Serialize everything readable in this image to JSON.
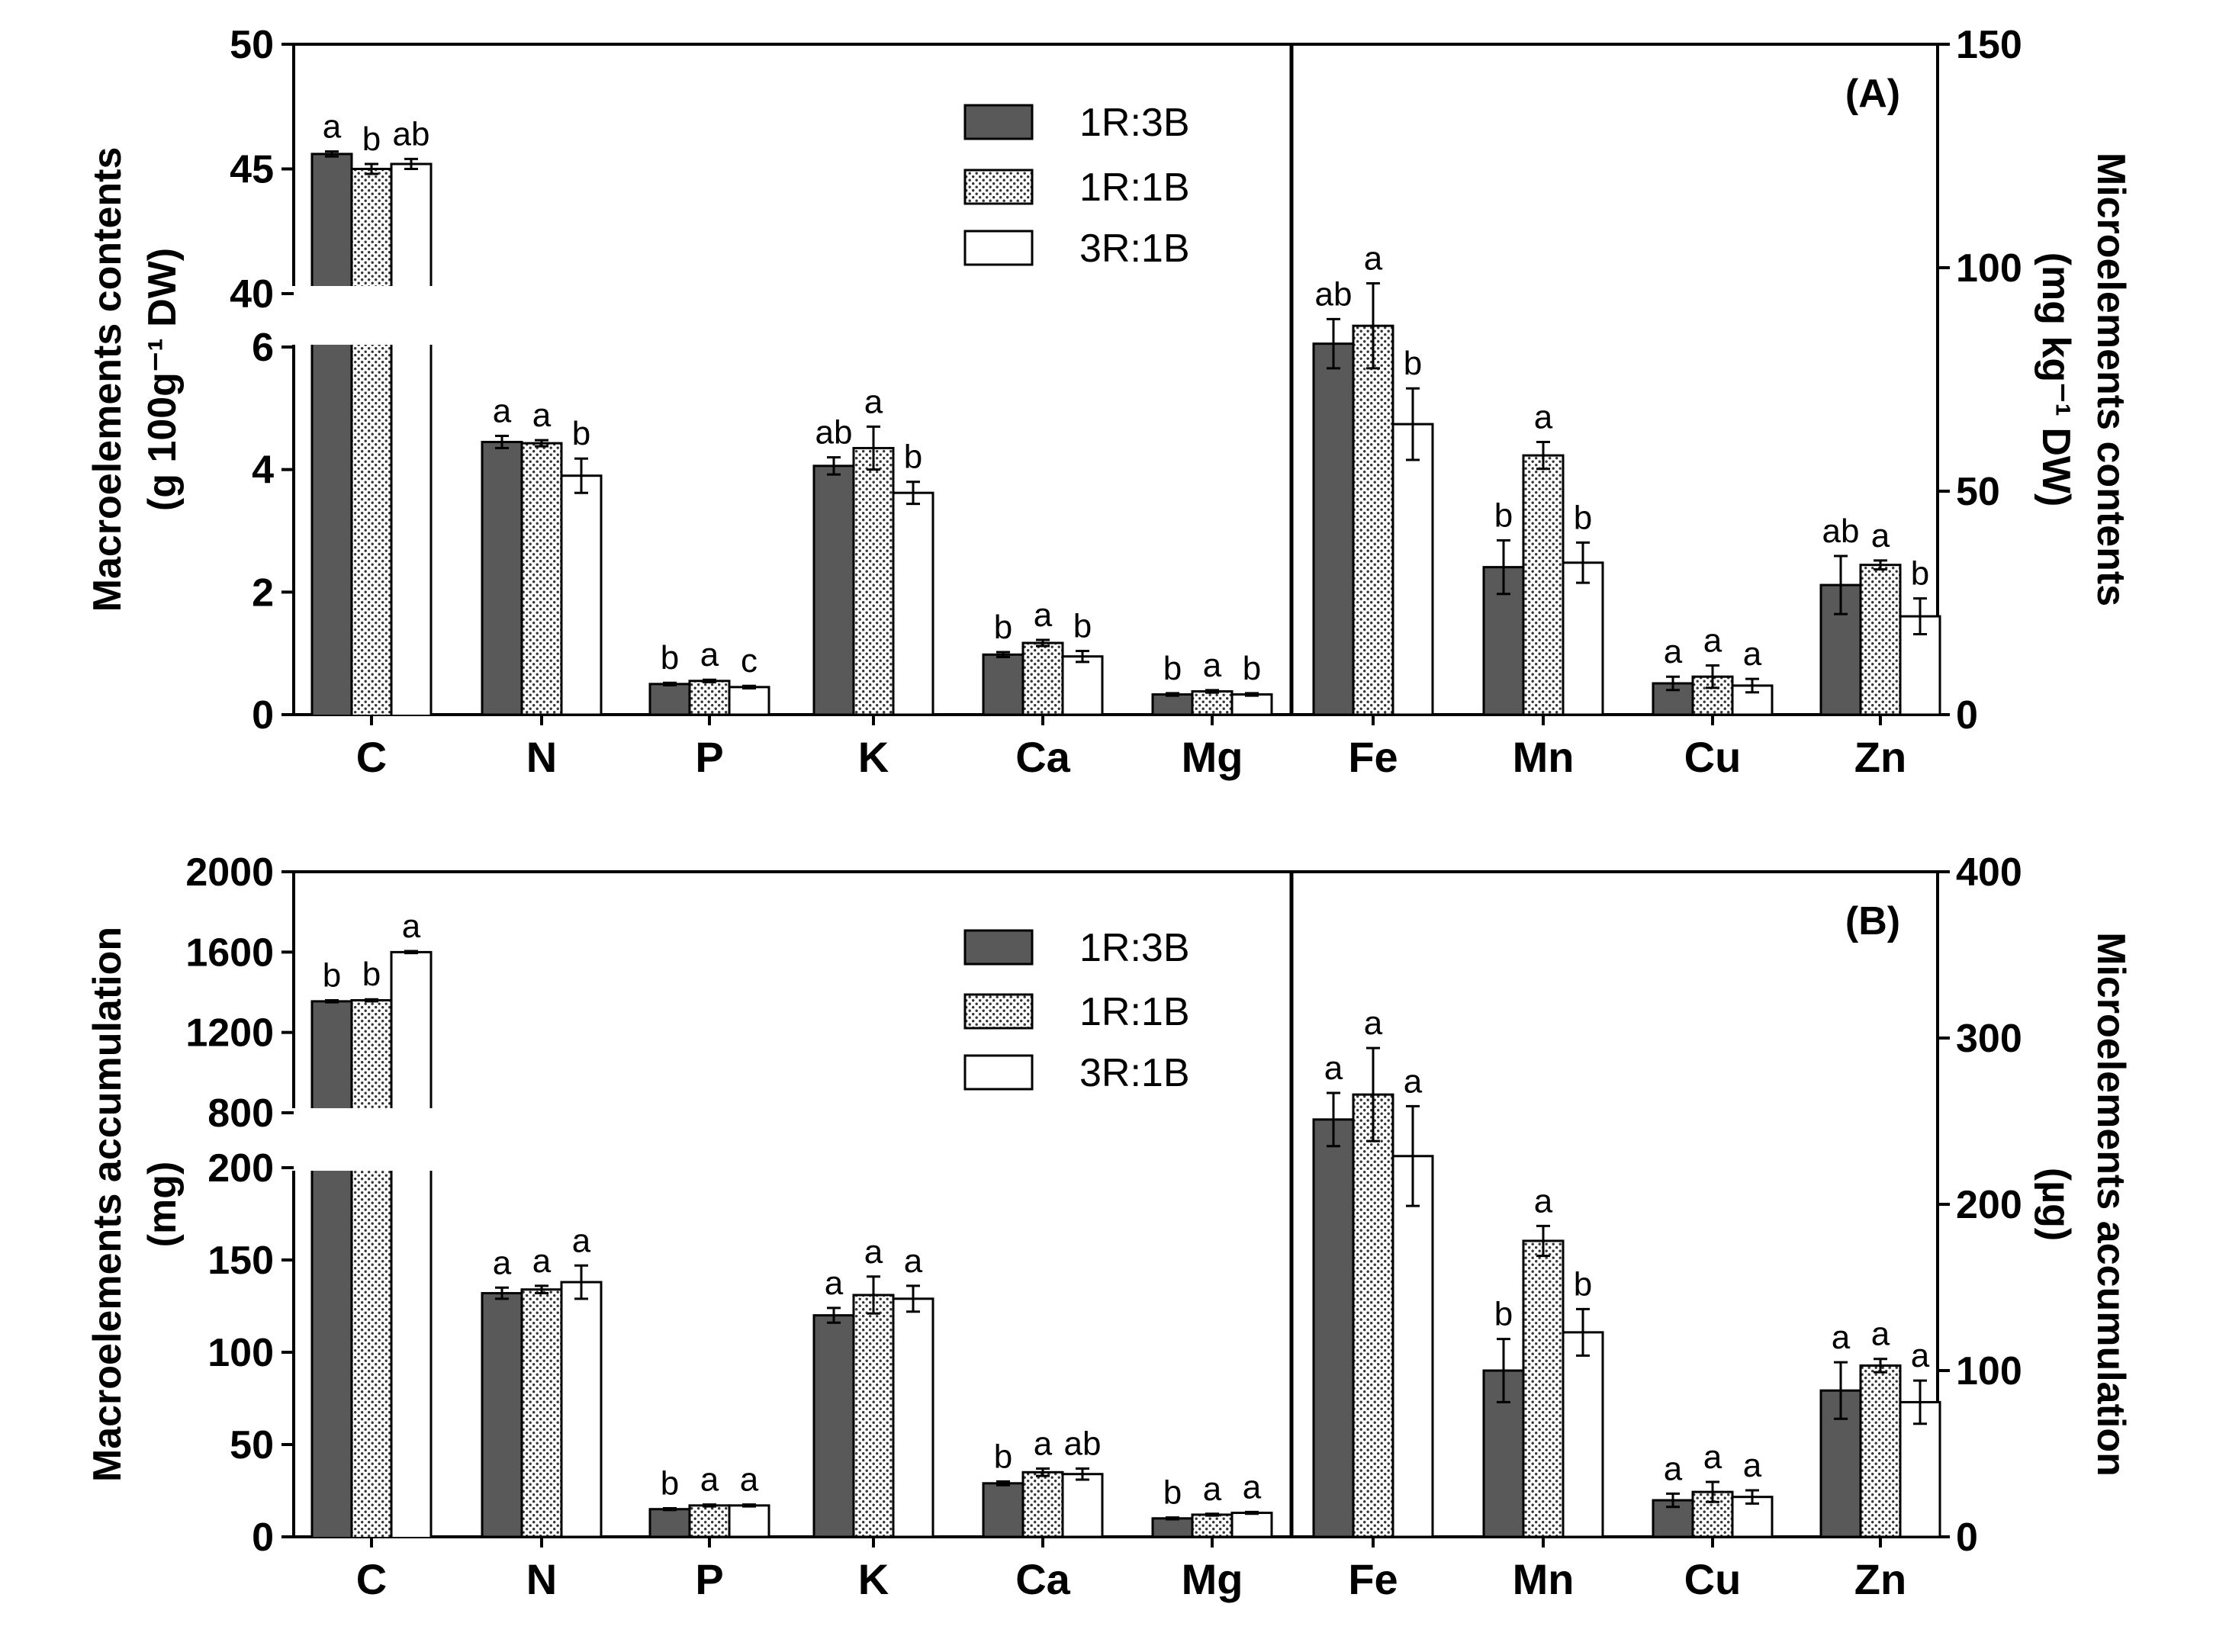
{
  "chart_data": [
    {
      "type": "bar",
      "panel_label": "(A)",
      "series_names": [
        "1R:3B",
        "1R:1B",
        "3R:1B"
      ],
      "colors": [
        "#595959",
        "#ffffff",
        "#ffffff"
      ],
      "patterns": [
        "solid",
        "dotted",
        "open"
      ],
      "left_ylabel_lines": [
        "Macroelements contents",
        "(g 100g⁻¹ DW)"
      ],
      "right_ylabel_lines": [
        "Microelements contents",
        "(mg kg⁻¹ DW)"
      ],
      "left_axis": {
        "lower_range": [
          0,
          6
        ],
        "lower_ticks": [
          0,
          2,
          4,
          6
        ],
        "upper_range": [
          40,
          50
        ],
        "upper_ticks": [
          40,
          45,
          50
        ]
      },
      "right_axis": {
        "range": [
          0,
          150
        ],
        "ticks": [
          0,
          50,
          100,
          150
        ]
      },
      "macro": {
        "categories": [
          "C",
          "N",
          "P",
          "K",
          "Ca",
          "Mg"
        ],
        "series": [
          {
            "name": "1R:3B",
            "values": [
              45.6,
              4.45,
              0.5,
              4.06,
              0.98,
              0.33
            ],
            "errors": [
              0.1,
              0.1,
              0.02,
              0.14,
              0.04,
              0.02
            ],
            "letters": [
              "a",
              "a",
              "b",
              "ab",
              "b",
              "b"
            ]
          },
          {
            "name": "1R:1B",
            "values": [
              45.0,
              4.43,
              0.55,
              4.35,
              1.17,
              0.38
            ],
            "errors": [
              0.2,
              0.05,
              0.02,
              0.35,
              0.05,
              0.02
            ],
            "letters": [
              "b",
              "a",
              "a",
              "a",
              "a",
              "a"
            ]
          },
          {
            "name": "3R:1B",
            "values": [
              45.2,
              3.9,
              0.45,
              3.62,
              0.95,
              0.33
            ],
            "errors": [
              0.2,
              0.28,
              0.02,
              0.18,
              0.09,
              0.02
            ],
            "letters": [
              "ab",
              "b",
              "c",
              "b",
              "b",
              "b"
            ]
          }
        ]
      },
      "micro": {
        "categories": [
          "Fe",
          "Mn",
          "Cu",
          "Zn"
        ],
        "series": [
          {
            "name": "1R:3B",
            "values": [
              83,
              33,
              7,
              29
            ],
            "errors": [
              5.5,
              6,
              1.5,
              6.5
            ],
            "letters": [
              "ab",
              "b",
              "a",
              "ab"
            ]
          },
          {
            "name": "1R:1B",
            "values": [
              87,
              58,
              8.5,
              33.5
            ],
            "errors": [
              9.5,
              3,
              2.5,
              1
            ],
            "letters": [
              "a",
              "a",
              "a",
              "a"
            ]
          },
          {
            "name": "3R:1B",
            "values": [
              65,
              34,
              6.5,
              22
            ],
            "errors": [
              8,
              4.5,
              1.5,
              4
            ],
            "letters": [
              "b",
              "b",
              "a",
              "b"
            ]
          }
        ]
      }
    },
    {
      "type": "bar",
      "panel_label": "(B)",
      "series_names": [
        "1R:3B",
        "1R:1B",
        "3R:1B"
      ],
      "colors": [
        "#595959",
        "#ffffff",
        "#ffffff"
      ],
      "patterns": [
        "solid",
        "dotted",
        "open"
      ],
      "left_ylabel_lines": [
        "Macroelements accumulation",
        "(mg)"
      ],
      "right_ylabel_lines": [
        "Microelements accumulation",
        "(µg)"
      ],
      "left_axis": {
        "lower_range": [
          0,
          200
        ],
        "lower_ticks": [
          0,
          50,
          100,
          150,
          200
        ],
        "upper_range": [
          800,
          2000
        ],
        "upper_ticks": [
          800,
          1200,
          1600,
          2000
        ]
      },
      "right_axis": {
        "range": [
          0,
          400
        ],
        "ticks": [
          0,
          100,
          200,
          300,
          400
        ]
      },
      "macro": {
        "categories": [
          "C",
          "N",
          "P",
          "K",
          "Ca",
          "Mg"
        ],
        "series": [
          {
            "name": "1R:3B",
            "values": [
              1355,
              132,
              15,
              120,
              29,
              10
            ],
            "errors": [
              5,
              3,
              0.5,
              4,
              1,
              0.5
            ],
            "letters": [
              "b",
              "a",
              "b",
              "a",
              "b",
              "b"
            ]
          },
          {
            "name": "1R:1B",
            "values": [
              1360,
              134,
              17,
              131,
              35,
              12
            ],
            "errors": [
              5,
              2,
              0.5,
              10,
              2,
              0.5
            ],
            "letters": [
              "b",
              "a",
              "a",
              "a",
              "a",
              "a"
            ]
          },
          {
            "name": "3R:1B",
            "values": [
              1600,
              138,
              17,
              129,
              34,
              13
            ],
            "errors": [
              5,
              9,
              0.5,
              7,
              3,
              0.5
            ],
            "letters": [
              "a",
              "a",
              "a",
              "a",
              "ab",
              "a"
            ]
          }
        ]
      },
      "micro": {
        "categories": [
          "Fe",
          "Mn",
          "Cu",
          "Zn"
        ],
        "series": [
          {
            "name": "1R:3B",
            "values": [
              251,
              100,
              22,
              88
            ],
            "errors": [
              16,
              19,
              4,
              17
            ],
            "letters": [
              "a",
              "b",
              "a",
              "a"
            ]
          },
          {
            "name": "1R:1B",
            "values": [
              266,
              178,
              27,
              103
            ],
            "errors": [
              28,
              9,
              6,
              4
            ],
            "letters": [
              "a",
              "a",
              "a",
              "a"
            ]
          },
          {
            "name": "3R:1B",
            "values": [
              229,
              123,
              24,
              81
            ],
            "errors": [
              30,
              14,
              4,
              13
            ],
            "letters": [
              "a",
              "b",
              "a",
              "a"
            ]
          }
        ]
      }
    }
  ]
}
